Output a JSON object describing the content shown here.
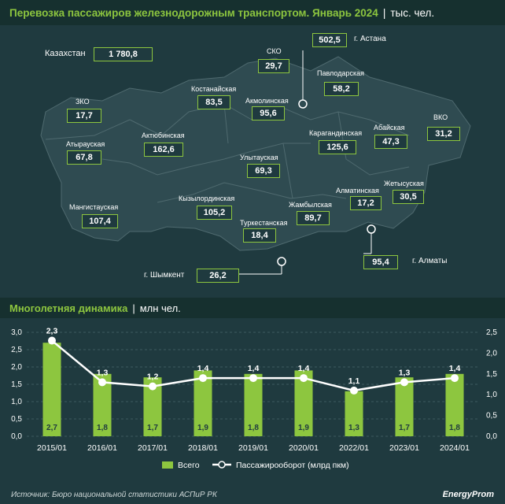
{
  "header": {
    "title": "Перевозка пассажиров железнодорожным транспортом. Январь 2024",
    "unit": "тыс. чел."
  },
  "map": {
    "total_label": "Казахстан",
    "total_value": "1 780,8",
    "regions": [
      {
        "name": "СКО",
        "value": "29,7"
      },
      {
        "name": "г. Астана",
        "value": "502,5"
      },
      {
        "name": "Павлодарская",
        "value": "58,2"
      },
      {
        "name": "Костанайская",
        "value": "83,5"
      },
      {
        "name": "Акмолинская",
        "value": "95,6"
      },
      {
        "name": "ЗКО",
        "value": "17,7"
      },
      {
        "name": "ВКО",
        "value": "31,2"
      },
      {
        "name": "Абайская",
        "value": "47,3"
      },
      {
        "name": "Актюбинская",
        "value": "162,6"
      },
      {
        "name": "Карагандинская",
        "value": "125,6"
      },
      {
        "name": "Атырауская",
        "value": "67,8"
      },
      {
        "name": "Улытауская",
        "value": "69,3"
      },
      {
        "name": "Жетысуская",
        "value": "30,5"
      },
      {
        "name": "Кызылординская",
        "value": "105,2"
      },
      {
        "name": "Алматинская",
        "value": "17,2"
      },
      {
        "name": "Мангистауская",
        "value": "107,4"
      },
      {
        "name": "Жамбылская",
        "value": "89,7"
      },
      {
        "name": "Туркестанская",
        "value": "18,4"
      },
      {
        "name": "г. Алматы",
        "value": "95,4"
      },
      {
        "name": "г. Шымкент",
        "value": "26,2"
      }
    ]
  },
  "section2": {
    "title": "Многолетняя динамика",
    "unit": "млн чел."
  },
  "chart_data": {
    "type": "bar",
    "categories": [
      "2015/01",
      "2016/01",
      "2017/01",
      "2018/01",
      "2019/01",
      "2020/01",
      "2022/01",
      "2023/01",
      "2024/01"
    ],
    "series": [
      {
        "name": "Всего",
        "values": [
          2.7,
          1.8,
          1.7,
          1.9,
          1.8,
          1.9,
          1.3,
          1.7,
          1.8
        ],
        "labels": [
          "2,7",
          "1,8",
          "1,7",
          "1,9",
          "1,8",
          "1,9",
          "1,3",
          "1,7",
          "1,8"
        ],
        "type": "bar",
        "axis": "left",
        "color": "#8dc63f"
      },
      {
        "name": "Пассажирооборот (млрд пкм)",
        "values": [
          2.3,
          1.3,
          1.2,
          1.4,
          1.4,
          1.4,
          1.1,
          1.3,
          1.4
        ],
        "labels": [
          "2,3",
          "1,3",
          "1,2",
          "1,4",
          "1,4",
          "1,4",
          "1,1",
          "1,3",
          "1,4"
        ],
        "type": "line",
        "axis": "right",
        "color": "#ffffff"
      }
    ],
    "ylim_left": [
      0,
      3.0
    ],
    "yticks_left": [
      "0,0",
      "0,5",
      "1,0",
      "1,5",
      "2,0",
      "2,5",
      "3,0"
    ],
    "ylim_right": [
      0,
      2.5
    ],
    "yticks_right": [
      "0,0",
      "0,5",
      "1,0",
      "1,5",
      "2,0",
      "2,5"
    ],
    "legend_position": "bottom-center",
    "grid": true
  },
  "footer": {
    "source": "Источник: Бюро национальной статистики АСПиР РК",
    "brand": "EnergyProm"
  }
}
